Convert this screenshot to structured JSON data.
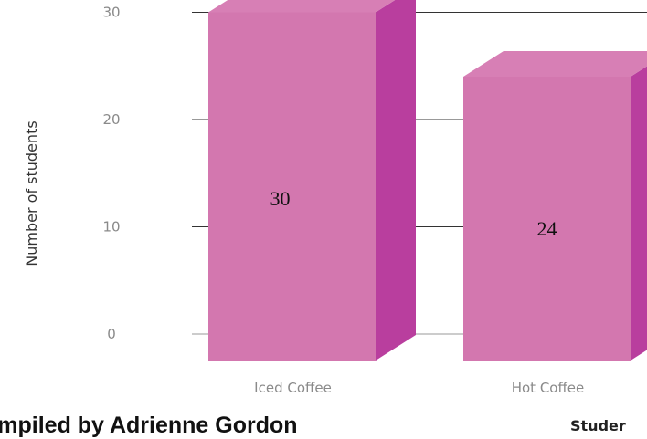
{
  "chart_data": {
    "type": "bar",
    "categories": [
      "Iced Coffee",
      "Hot Coffee"
    ],
    "values": [
      30,
      24
    ],
    "data_labels": [
      "30",
      "24"
    ],
    "ylabel": "Number of students",
    "xlabel": "Studer",
    "yticks": [
      "0",
      "10",
      "20",
      "30"
    ],
    "ylim": [
      0,
      30
    ],
    "grid": true,
    "style": "3d",
    "colors": {
      "front": "#D377AF",
      "top": "#D77FB5",
      "side": "#B93E9E",
      "grid": "#333333"
    }
  },
  "credit": "ompiled by Adrienne Gordon"
}
